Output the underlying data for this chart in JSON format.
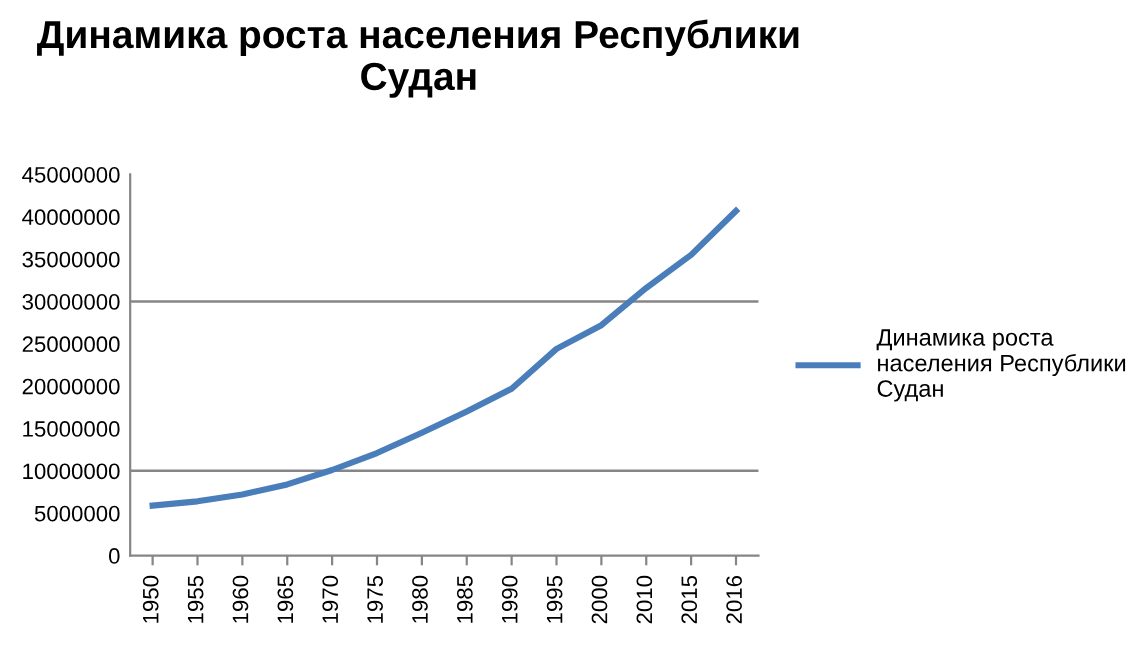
{
  "chart_data": {
    "type": "line",
    "title": "Динамика роста населения Республики Судан",
    "categories": [
      "1950",
      "1955",
      "1960",
      "1965",
      "1970",
      "1975",
      "1980",
      "1985",
      "1990",
      "1995",
      "2000",
      "2010",
      "2015",
      "2016"
    ],
    "series": [
      {
        "name": "Динамика роста населения Республики Судан",
        "color": "#4a7ebb",
        "values": [
          5900000,
          6400000,
          7200000,
          8400000,
          10100000,
          12100000,
          14500000,
          17000000,
          19700000,
          24400000,
          27200000,
          31600000,
          35500000,
          40700000
        ]
      }
    ],
    "ylim": [
      0,
      45000000
    ],
    "yticks": [
      0,
      5000000,
      10000000,
      15000000,
      20000000,
      25000000,
      30000000,
      35000000,
      40000000,
      45000000
    ],
    "ref_lines": [
      {
        "axis": "y",
        "value": 10000000,
        "color": "#868686"
      },
      {
        "axis": "y",
        "value": 30000000,
        "color": "#868686"
      }
    ],
    "legend": "right",
    "marker": "none"
  }
}
